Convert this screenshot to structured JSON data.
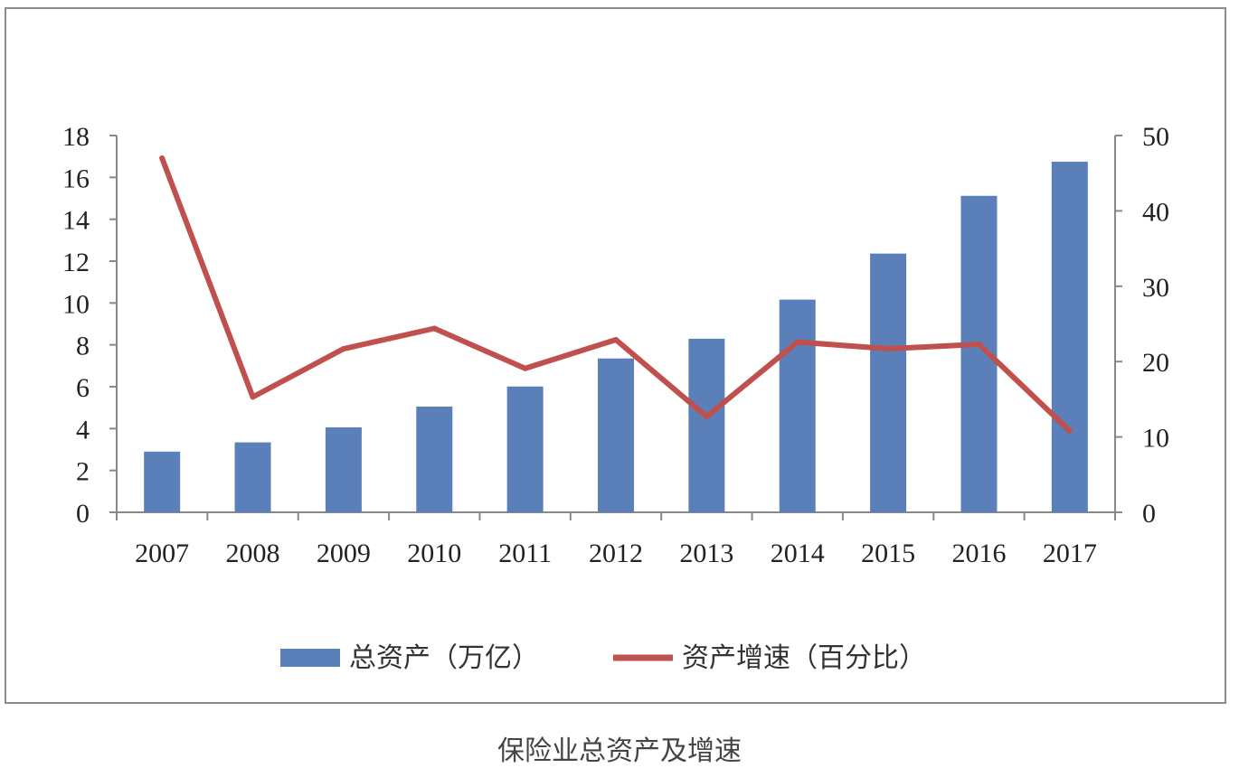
{
  "caption": "保险业总资产及增速",
  "chart_data": {
    "type": "bar+line",
    "categories": [
      "2007",
      "2008",
      "2009",
      "2010",
      "2011",
      "2012",
      "2013",
      "2014",
      "2015",
      "2016",
      "2017"
    ],
    "series": [
      {
        "name": "总资产（万亿）",
        "type": "bar",
        "axis": "left",
        "color": "#5b80b9",
        "values": [
          2.9,
          3.34,
          4.06,
          5.05,
          6.01,
          7.35,
          8.29,
          10.16,
          12.36,
          15.12,
          16.75
        ]
      },
      {
        "name": "资产增速（百分比）",
        "type": "line",
        "axis": "right",
        "color": "#c0504d",
        "values": [
          47,
          15.3,
          21.7,
          24.4,
          19.1,
          22.9,
          12.7,
          22.6,
          21.7,
          22.3,
          10.8
        ]
      }
    ],
    "left_axis": {
      "min": 0,
      "max": 18,
      "step": 2,
      "ticks": [
        "0",
        "2",
        "4",
        "6",
        "8",
        "10",
        "12",
        "14",
        "16",
        "18"
      ]
    },
    "right_axis": {
      "min": 0,
      "max": 50,
      "step": 10,
      "ticks": [
        "0",
        "10",
        "20",
        "30",
        "40",
        "50"
      ]
    },
    "legend_position": "bottom",
    "grid": false
  }
}
